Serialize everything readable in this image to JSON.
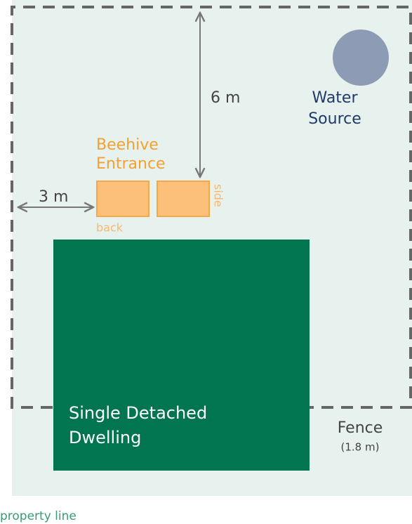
{
  "labels": {
    "water_source": [
      "Water",
      "Source"
    ],
    "beehive_entrance": [
      "Beehive",
      "Entrance"
    ],
    "side": "side",
    "back": "back",
    "distance_top": "6 m",
    "distance_side": "3 m",
    "dwelling": [
      "Single Detached",
      "Dwelling"
    ],
    "fence": "Fence",
    "fence_height": "(1.8 m)",
    "property_line": "property line"
  }
}
